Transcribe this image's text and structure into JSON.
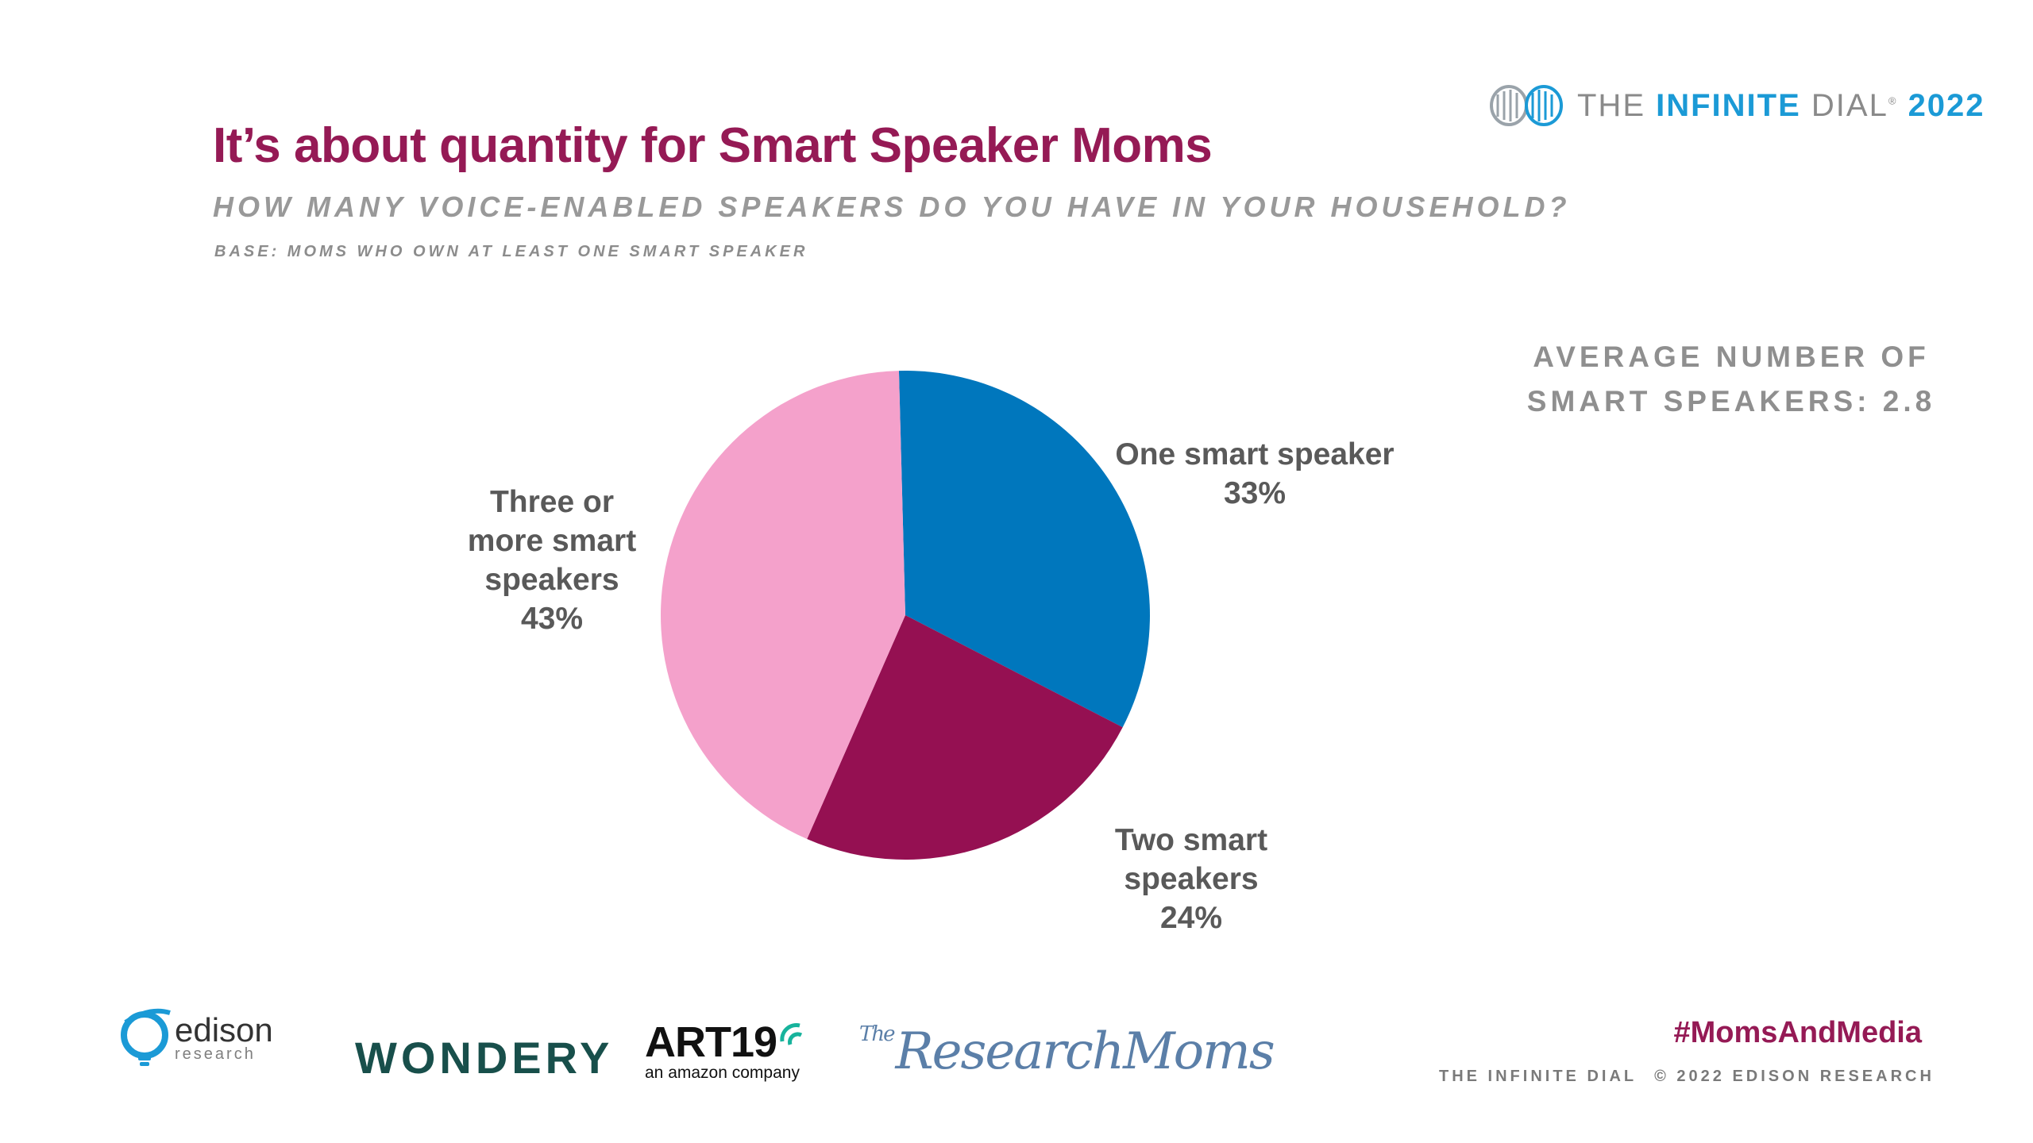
{
  "header": {
    "title": "It’s about quantity for Smart Speaker Moms",
    "question": "HOW MANY VOICE-ENABLED SPEAKERS DO YOU HAVE IN YOUR HOUSEHOLD?",
    "base": "BASE: MOMS WHO OWN AT LEAST ONE SMART SPEAKER"
  },
  "brand": {
    "the": "THE ",
    "infinite": "INFINITE",
    "dial": " DIAL",
    "reg": "®",
    "year": "2022"
  },
  "average": {
    "line1": "AVERAGE NUMBER OF",
    "line2": "SMART SPEAKERS: 2.8"
  },
  "chart_data": {
    "type": "pie",
    "slices": [
      {
        "name": "One smart speaker",
        "value": 33,
        "color": "#0077bd"
      },
      {
        "name": "Two smart speakers",
        "value": 24,
        "color": "#951052"
      },
      {
        "name": "Three or more smart speakers",
        "value": 43,
        "color": "#f4a1cb"
      }
    ],
    "labels": {
      "one": {
        "line1": "One smart speaker",
        "pct": "33%"
      },
      "two": {
        "line1": "Two smart",
        "line2": "speakers",
        "pct": "24%"
      },
      "three": {
        "line1": "Three or",
        "line2": "more smart",
        "line3": "speakers",
        "pct": "43%"
      }
    }
  },
  "footer": {
    "edison": {
      "name": "edison",
      "sub": "research"
    },
    "wondery": "WONDERY",
    "art19": {
      "name": "ART19",
      "sub": "an amazon company"
    },
    "researchmoms": {
      "the": "The",
      "name": "ResearchMoms"
    },
    "hashtag": "#MomsAndMedia",
    "note1": "THE INFINITE DIAL",
    "note2": "© 2022 EDISON RESEARCH"
  }
}
